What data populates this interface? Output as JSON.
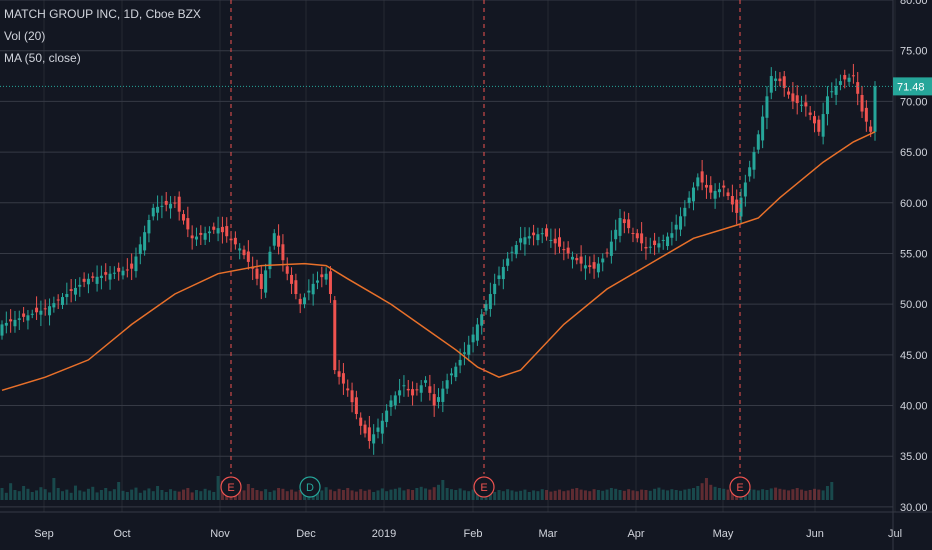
{
  "legend": {
    "symbol_line": "MATCH GROUP INC, 1D, Cboe BZX",
    "volume_line": "Vol (20)",
    "ma_line": "MA (50, close)"
  },
  "colors": {
    "background": "#131722",
    "grid": "#363a45",
    "text": "#d1d4dc",
    "up": "#26a69a",
    "down": "#ef5350",
    "ma": "#e8702a",
    "last_price": "#26a69a",
    "event_earnings": "#ef5350",
    "event_dividend": "#26a69a"
  },
  "chart_data": {
    "type": "candlestick",
    "title": "MATCH GROUP INC, 1D, Cboe BZX",
    "y_axis": {
      "ticks": [
        "30.00",
        "35.00",
        "40.00",
        "45.00",
        "50.00",
        "55.00",
        "60.00",
        "65.00",
        "70.00",
        "75.00",
        "80.00"
      ],
      "range": [
        29.5,
        80.0
      ],
      "position": "right"
    },
    "x_axis": {
      "ticks": [
        "Sep",
        "Oct",
        "Nov",
        "Dec",
        "2019",
        "Feb",
        "Mar",
        "Apr",
        "May",
        "Jun",
        "Jul"
      ]
    },
    "last_price": 71.48,
    "last_price_label": "71.48",
    "events": [
      {
        "label": "E",
        "type": "earnings",
        "date": "Nov"
      },
      {
        "label": "D",
        "type": "dividend",
        "date": "Dec"
      },
      {
        "label": "E",
        "type": "earnings",
        "date": "Feb"
      },
      {
        "label": "E",
        "type": "earnings",
        "date": "May"
      }
    ],
    "close_path": [
      [
        0,
        48.0
      ],
      [
        10,
        49.5
      ],
      [
        20,
        52.5
      ],
      [
        30,
        53.5
      ],
      [
        35,
        59.5
      ],
      [
        40,
        60.0
      ],
      [
        44,
        56.5
      ],
      [
        50,
        57.5
      ],
      [
        55,
        55.5
      ],
      [
        58,
        53.5
      ],
      [
        60,
        51.5
      ],
      [
        63,
        57.0
      ],
      [
        66,
        53.0
      ],
      [
        69,
        50.0
      ],
      [
        72,
        52.0
      ],
      [
        75,
        53.0
      ],
      [
        76,
        51.0
      ],
      [
        77,
        43.5
      ],
      [
        80,
        41.5
      ],
      [
        83,
        38.0
      ],
      [
        85,
        36.5
      ],
      [
        88,
        38.5
      ],
      [
        90,
        40.5
      ],
      [
        93,
        42.0
      ],
      [
        95,
        41.0
      ],
      [
        98,
        42.5
      ],
      [
        100,
        40.0
      ],
      [
        103,
        42.5
      ],
      [
        106,
        44.5
      ],
      [
        108,
        46.0
      ],
      [
        111,
        49.0
      ],
      [
        114,
        52.0
      ],
      [
        117,
        54.5
      ],
      [
        120,
        56.5
      ],
      [
        125,
        57.0
      ],
      [
        128,
        56.0
      ],
      [
        131,
        55.0
      ],
      [
        134,
        54.0
      ],
      [
        137,
        53.5
      ],
      [
        140,
        55.0
      ],
      [
        143,
        58.5
      ],
      [
        146,
        57.0
      ],
      [
        149,
        55.5
      ],
      [
        152,
        56.0
      ],
      [
        155,
        57.0
      ],
      [
        158,
        59.5
      ],
      [
        161,
        62.5
      ],
      [
        164,
        61.0
      ],
      [
        167,
        61.5
      ],
      [
        170,
        59.0
      ],
      [
        172,
        62.0
      ],
      [
        174,
        65.0
      ],
      [
        176,
        68.5
      ],
      [
        178,
        72.5
      ],
      [
        180,
        72.0
      ],
      [
        183,
        70.0
      ],
      [
        186,
        69.5
      ],
      [
        189,
        67.0
      ],
      [
        191,
        70.5
      ],
      [
        194,
        72.0
      ],
      [
        197,
        72.5
      ],
      [
        199,
        69.0
      ],
      [
        201,
        67.0
      ],
      [
        202,
        71.48
      ]
    ],
    "ma50": [
      [
        0,
        41.5
      ],
      [
        10,
        42.8
      ],
      [
        20,
        44.5
      ],
      [
        30,
        48.0
      ],
      [
        40,
        51.0
      ],
      [
        50,
        53.0
      ],
      [
        60,
        53.8
      ],
      [
        70,
        54.0
      ],
      [
        75,
        53.8
      ],
      [
        80,
        52.5
      ],
      [
        90,
        50.0
      ],
      [
        100,
        47.0
      ],
      [
        105,
        45.5
      ],
      [
        110,
        43.8
      ],
      [
        115,
        42.8
      ],
      [
        120,
        43.5
      ],
      [
        130,
        48.0
      ],
      [
        140,
        51.5
      ],
      [
        150,
        54.0
      ],
      [
        160,
        56.5
      ],
      [
        170,
        57.8
      ],
      [
        175,
        58.5
      ],
      [
        180,
        60.5
      ],
      [
        190,
        64.0
      ],
      [
        197,
        66.0
      ],
      [
        202,
        67.0
      ]
    ],
    "volume": [
      0.3,
      0.18,
      0.42,
      0.25,
      0.22,
      0.35,
      0.28,
      0.2,
      0.24,
      0.32,
      0.27,
      0.19,
      0.55,
      0.3,
      0.22,
      0.26,
      0.18,
      0.36,
      0.24,
      0.21,
      0.28,
      0.33,
      0.19,
      0.25,
      0.3,
      0.22,
      0.27,
      0.45,
      0.23,
      0.2,
      0.26,
      0.31,
      0.18,
      0.24,
      0.29,
      0.22,
      0.35,
      0.25,
      0.2,
      0.27,
      0.23,
      0.21,
      0.26,
      0.3,
      0.19,
      0.25,
      0.22,
      0.28,
      0.24,
      0.2,
      0.6,
      0.48,
      0.35,
      0.3,
      0.28,
      0.26,
      0.24,
      0.4,
      0.3,
      0.25,
      0.22,
      0.27,
      0.2,
      0.24,
      0.3,
      0.28,
      0.22,
      0.26,
      0.21,
      0.25,
      0.29,
      0.23,
      0.27,
      0.2,
      0.24,
      0.32,
      0.26,
      0.22,
      0.28,
      0.25,
      0.3,
      0.24,
      0.21,
      0.27,
      0.23,
      0.26,
      0.2,
      0.24,
      0.29,
      0.22,
      0.26,
      0.28,
      0.31,
      0.24,
      0.27,
      0.25,
      0.3,
      0.33,
      0.29,
      0.26,
      0.32,
      0.38,
      0.5,
      0.3,
      0.27,
      0.25,
      0.29,
      0.24,
      0.22,
      0.26,
      0.21,
      0.24,
      0.28,
      0.23,
      0.2,
      0.25,
      0.22,
      0.27,
      0.24,
      0.21,
      0.23,
      0.26,
      0.2,
      0.24,
      0.22,
      0.27,
      0.25,
      0.21,
      0.23,
      0.26,
      0.22,
      0.24,
      0.28,
      0.3,
      0.26,
      0.24,
      0.22,
      0.27,
      0.25,
      0.23,
      0.26,
      0.3,
      0.28,
      0.25,
      0.23,
      0.27,
      0.24,
      0.22,
      0.26,
      0.25,
      0.23,
      0.28,
      0.31,
      0.26,
      0.24,
      0.27,
      0.25,
      0.23,
      0.26,
      0.28,
      0.3,
      0.35,
      0.42,
      0.55,
      0.38,
      0.33,
      0.3,
      0.28,
      0.26,
      0.29,
      0.27,
      0.25,
      0.3,
      0.28,
      0.26,
      0.24,
      0.27,
      0.25,
      0.29,
      0.31,
      0.28,
      0.26,
      0.24,
      0.27,
      0.3,
      0.26,
      0.23,
      0.25,
      0.28,
      0.26,
      0.24,
      0.35,
      0.45
    ]
  }
}
